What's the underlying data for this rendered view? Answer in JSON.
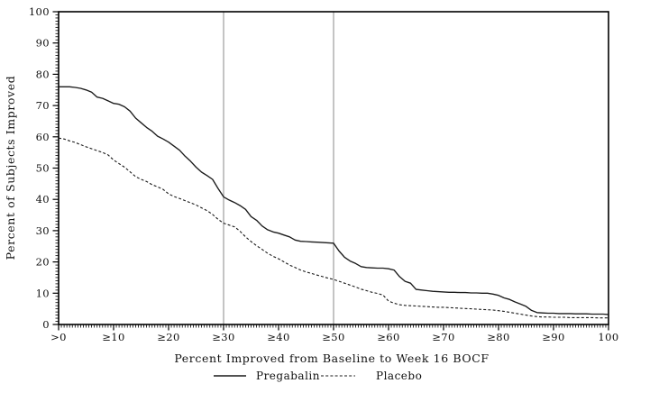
{
  "colors": {
    "curve": "#1a1a1a",
    "reference_line": "#9c9c9c",
    "axis": "#000000",
    "background": "#ffffff"
  },
  "chart_data": {
    "type": "line",
    "title": "",
    "xlabel": "Percent Improved from Baseline to Week 16 BOCF",
    "ylabel": "Percent of Subjects Improved",
    "xlim": [
      0,
      100
    ],
    "ylim": [
      0,
      100
    ],
    "grid": false,
    "legend_position": "bottom",
    "reference_lines_x": [
      30,
      50
    ],
    "x_minor_step": 0.5,
    "y_minor_step": 1,
    "x_ticks": [
      {
        "value": 0,
        "label": ">0"
      },
      {
        "value": 10,
        "label": "≥10"
      },
      {
        "value": 20,
        "label": "≥20"
      },
      {
        "value": 30,
        "label": "≥30"
      },
      {
        "value": 40,
        "label": "≥40"
      },
      {
        "value": 50,
        "label": "≥50"
      },
      {
        "value": 60,
        "label": "≥60"
      },
      {
        "value": 70,
        "label": "≥70"
      },
      {
        "value": 80,
        "label": "≥80"
      },
      {
        "value": 90,
        "label": "≥90"
      },
      {
        "value": 100,
        "label": "100"
      }
    ],
    "y_ticks": [
      {
        "value": 0,
        "label": "0"
      },
      {
        "value": 10,
        "label": "10"
      },
      {
        "value": 20,
        "label": "20"
      },
      {
        "value": 30,
        "label": "30"
      },
      {
        "value": 40,
        "label": "40"
      },
      {
        "value": 50,
        "label": "50"
      },
      {
        "value": 60,
        "label": "60"
      },
      {
        "value": 70,
        "label": "70"
      },
      {
        "value": 80,
        "label": "80"
      },
      {
        "value": 90,
        "label": "90"
      },
      {
        "value": 100,
        "label": "100"
      }
    ],
    "x_start": 0,
    "x_step": 1,
    "series": [
      {
        "name": "Pregabalin",
        "line_style": "solid",
        "color": "#1a1a1a",
        "values": [
          76,
          76,
          76,
          75.8,
          75.5,
          75,
          74.3,
          72.7,
          72.3,
          71.5,
          70.7,
          70.4,
          69.6,
          68.2,
          66,
          64.5,
          63,
          61.8,
          60.2,
          59.3,
          58.3,
          57,
          55.7,
          53.8,
          52.2,
          50.3,
          48.7,
          47.6,
          46.4,
          43.5,
          40.8,
          39.8,
          39,
          38,
          36.8,
          34.5,
          33.3,
          31.5,
          30.3,
          29.6,
          29.2,
          28.6,
          28,
          27,
          26.6,
          26.5,
          26.4,
          26.3,
          26.2,
          26.1,
          26,
          23.5,
          21.5,
          20.3,
          19.5,
          18.5,
          18.2,
          18.1,
          18,
          18,
          17.8,
          17.4,
          15.3,
          13.8,
          13.2,
          11.2,
          11,
          10.8,
          10.6,
          10.5,
          10.4,
          10.3,
          10.3,
          10.2,
          10.2,
          10.1,
          10.1,
          10,
          10,
          9.7,
          9.3,
          8.5,
          8,
          7.2,
          6.5,
          5.8,
          4.5,
          3.8,
          3.7,
          3.6,
          3.6,
          3.5,
          3.5,
          3.5,
          3.4,
          3.4,
          3.4,
          3.3,
          3.3,
          3.3,
          3.2
        ]
      },
      {
        "name": "Placebo",
        "line_style": "dashed",
        "color": "#1a1a1a",
        "values": [
          59.6,
          59.3,
          58.7,
          58.2,
          57.5,
          56.8,
          56.2,
          55.6,
          55,
          54.2,
          52.6,
          51.4,
          50.3,
          48.8,
          47.3,
          46.4,
          45.7,
          44.7,
          44,
          43.2,
          41.8,
          40.9,
          40.3,
          39.6,
          38.9,
          38.2,
          37.3,
          36.4,
          35.2,
          33.6,
          32.4,
          31.8,
          31.2,
          29.8,
          28,
          26.5,
          25.2,
          24,
          22.8,
          21.8,
          21,
          20,
          19,
          18.2,
          17.4,
          16.8,
          16.3,
          15.8,
          15.3,
          14.8,
          14.4,
          13.8,
          13.2,
          12.6,
          12,
          11.3,
          10.8,
          10.3,
          9.9,
          9.4,
          7.5,
          6.8,
          6.3,
          6.1,
          6,
          5.9,
          5.8,
          5.7,
          5.6,
          5.5,
          5.5,
          5.4,
          5.3,
          5.2,
          5.1,
          5,
          4.9,
          4.8,
          4.7,
          4.6,
          4.4,
          4.2,
          3.9,
          3.6,
          3.3,
          3,
          2.7,
          2.5,
          2.4,
          2.4,
          2.3,
          2.3,
          2.3,
          2.2,
          2.2,
          2.2,
          2.2,
          2.2,
          2.1,
          2.1,
          2.1
        ]
      }
    ]
  },
  "legend": {
    "items": [
      {
        "label": "Pregabalin",
        "line": "solid"
      },
      {
        "label": "Placebo",
        "line": "dashed"
      }
    ]
  }
}
